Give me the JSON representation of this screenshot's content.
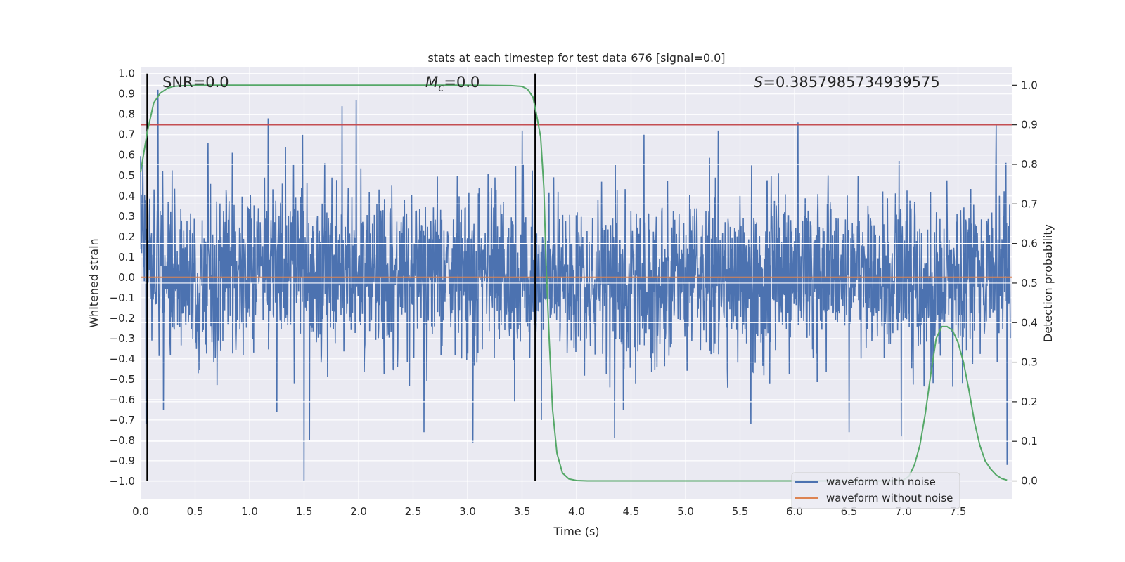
{
  "chart_data": {
    "type": "line",
    "title": "stats at each timestep for test data 676 [signal=0.0]",
    "xlabel": "Time (s)",
    "ylabel": "Whitened strain",
    "y2label": "Detection probability",
    "xlim": [
      0.0,
      8.0
    ],
    "ylim": [
      -1.09,
      1.03
    ],
    "y2lim": [
      -0.047,
      1.045
    ],
    "xticks": [
      "0.0",
      "0.5",
      "1.0",
      "1.5",
      "2.0",
      "2.5",
      "3.0",
      "3.5",
      "4.0",
      "4.5",
      "5.0",
      "5.5",
      "6.0",
      "6.5",
      "7.0",
      "7.5"
    ],
    "yticks": [
      "1.0",
      "0.9",
      "0.8",
      "0.7",
      "0.6",
      "0.5",
      "0.4",
      "0.3",
      "0.2",
      "0.1",
      "0.0",
      "−0.1",
      "−0.2",
      "−0.3",
      "−0.4",
      "−0.5",
      "−0.6",
      "−0.7",
      "−0.8",
      "−0.9",
      "−1.0"
    ],
    "y2ticks": [
      "1.0",
      "0.9",
      "0.8",
      "0.7",
      "0.6",
      "0.5",
      "0.4",
      "0.3",
      "0.2",
      "0.1",
      "0.0"
    ],
    "annotations": {
      "snr": "SNR=0.0",
      "mc": "=0.0",
      "mc_symbol": "M",
      "mc_sub": "c",
      "s": "=0.3857985734939575",
      "s_symbol": "S"
    },
    "legend": {
      "placement": "lower-right",
      "entries": [
        "waveform with noise",
        "waveform without noise"
      ]
    },
    "colors": {
      "noise": "#4c72b0",
      "clean": "#dd8452",
      "probability": "#55a868",
      "threshold": "#c44e52",
      "markers": "#000000",
      "axes_bg": "#eaeaf2",
      "grid": "#ffffff"
    },
    "series": [
      {
        "name": "waveform with noise",
        "axis": "left",
        "envelope_peaks_pos": [
          [
            0.02,
            0.57
          ],
          [
            0.16,
            0.92
          ],
          [
            0.62,
            0.66
          ],
          [
            1.17,
            0.78
          ],
          [
            1.85,
            0.84
          ],
          [
            1.98,
            0.87
          ],
          [
            3.5,
            0.72
          ],
          [
            4.62,
            0.7
          ],
          [
            5.3,
            0.72
          ],
          [
            6.03,
            0.76
          ],
          [
            7.85,
            0.75
          ]
        ],
        "envelope_peaks_neg": [
          [
            0.05,
            -0.72
          ],
          [
            0.21,
            -0.65
          ],
          [
            1.25,
            -0.66
          ],
          [
            1.5,
            -1.0
          ],
          [
            1.55,
            -0.8
          ],
          [
            2.6,
            -0.76
          ],
          [
            3.05,
            -0.81
          ],
          [
            4.35,
            -0.79
          ],
          [
            5.6,
            -0.72
          ],
          [
            6.5,
            -0.76
          ],
          [
            6.98,
            -0.78
          ],
          [
            7.95,
            -0.92
          ]
        ]
      },
      {
        "name": "waveform without noise",
        "axis": "left",
        "x": [
          0.0,
          8.0
        ],
        "y": [
          0.0,
          0.0
        ]
      },
      {
        "name": "",
        "axis": "right",
        "x": [
          0.0,
          0.06,
          0.12,
          0.18,
          0.25,
          0.3,
          0.4,
          0.6,
          1.0,
          2.0,
          3.0,
          3.4,
          3.5,
          3.55,
          3.6,
          3.63,
          3.67,
          3.7,
          3.72,
          3.75,
          3.78,
          3.82,
          3.87,
          3.93,
          4.0,
          4.1,
          4.5,
          5.0,
          6.0,
          6.5,
          6.9,
          7.0,
          7.05,
          7.1,
          7.15,
          7.2,
          7.25,
          7.3,
          7.35,
          7.4,
          7.45,
          7.5,
          7.55,
          7.6,
          7.65,
          7.7,
          7.75,
          7.8,
          7.85,
          7.9,
          7.95
        ],
        "y": [
          0.78,
          0.88,
          0.955,
          0.98,
          0.993,
          0.997,
          0.999,
          1.0,
          1.0,
          1.0,
          1.0,
          0.999,
          0.997,
          0.99,
          0.97,
          0.93,
          0.87,
          0.74,
          0.55,
          0.35,
          0.18,
          0.07,
          0.02,
          0.005,
          0.001,
          0.0,
          0.0,
          0.0,
          0.0,
          0.0,
          0.0,
          0.002,
          0.012,
          0.04,
          0.09,
          0.17,
          0.27,
          0.36,
          0.39,
          0.39,
          0.38,
          0.35,
          0.3,
          0.23,
          0.15,
          0.09,
          0.05,
          0.03,
          0.015,
          0.006,
          0.002
        ]
      }
    ],
    "threshold": {
      "axis": "right",
      "y": 0.9
    },
    "vlines": [
      0.06,
      3.62
    ],
    "vline_range": [
      -1.0,
      1.0
    ]
  }
}
